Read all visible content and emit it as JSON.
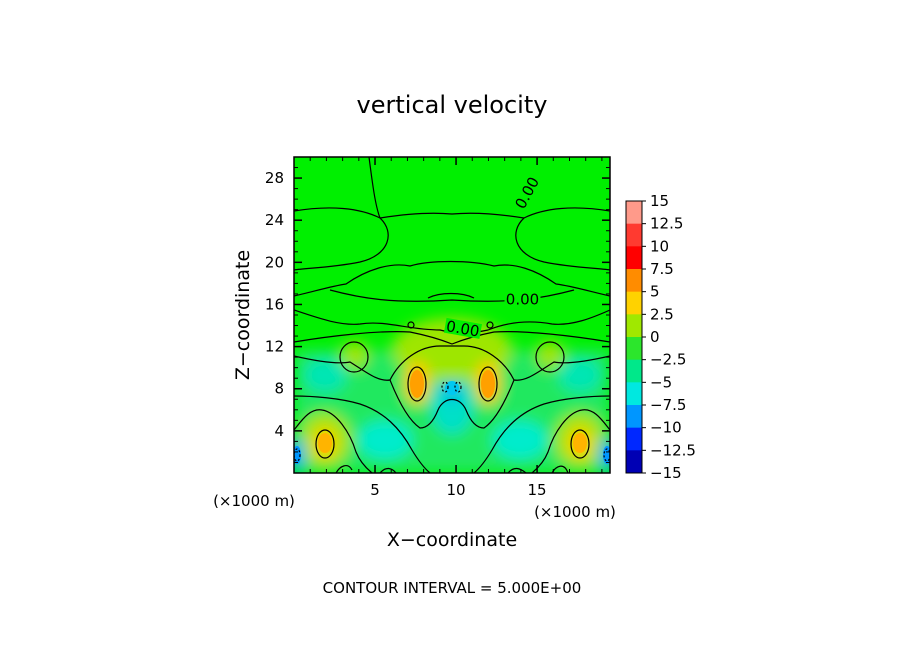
{
  "chart_data": {
    "type": "heatmap",
    "title": "vertical velocity",
    "xlabel": "X−coordinate",
    "ylabel": "Z−coordinate",
    "x_unit_left": "(×1000 m)",
    "x_unit_right": "(×1000 m)",
    "xlim": [
      0,
      19.5
    ],
    "ylim": [
      0,
      30
    ],
    "x_ticks": [
      {
        "value": 5,
        "label": "5"
      },
      {
        "value": 10,
        "label": "10"
      },
      {
        "value": 15,
        "label": "15"
      }
    ],
    "y_ticks": [
      {
        "value": 4,
        "label": "4"
      },
      {
        "value": 8,
        "label": "8"
      },
      {
        "value": 12,
        "label": "12"
      },
      {
        "value": 16,
        "label": "16"
      },
      {
        "value": 20,
        "label": "20"
      },
      {
        "value": 24,
        "label": "24"
      },
      {
        "value": 28,
        "label": "28"
      }
    ],
    "colorbar": {
      "levels": [
        {
          "value": 15,
          "label": "15",
          "color": "#ff9a8a"
        },
        {
          "value": 12.5,
          "label": "12.5",
          "color": "#ff3a30"
        },
        {
          "value": 10,
          "label": "10",
          "color": "#ff0000"
        },
        {
          "value": 7.5,
          "label": "7.5",
          "color": "#ff8c00"
        },
        {
          "value": 5,
          "label": "5",
          "color": "#ffd200"
        },
        {
          "value": 2.5,
          "label": "2.5",
          "color": "#a0e800"
        },
        {
          "value": 0,
          "label": "0",
          "color": "#2ce62c"
        },
        {
          "value": -2.5,
          "label": "−2.5",
          "color": "#00e88a"
        },
        {
          "value": -5,
          "label": "−5",
          "color": "#00e8e0"
        },
        {
          "value": -7.5,
          "label": "−7.5",
          "color": "#0096ff"
        },
        {
          "value": -10,
          "label": "−10",
          "color": "#0028ff"
        },
        {
          "value": -12.5,
          "label": "−12.5",
          "color": "#0000b4"
        },
        {
          "value": -15,
          "label": "−15",
          "color": "#6a1aa0"
        }
      ]
    },
    "contour_labels": [
      {
        "text": "0.00",
        "x": 14.5,
        "z": 26.5
      },
      {
        "text": "0.00",
        "x": 14.1,
        "z": 16.3
      },
      {
        "text": "0.00",
        "x": 10.4,
        "z": 13.5
      }
    ],
    "contour_interval_text": "CONTOUR INTERVAL = 5.000E+00"
  }
}
